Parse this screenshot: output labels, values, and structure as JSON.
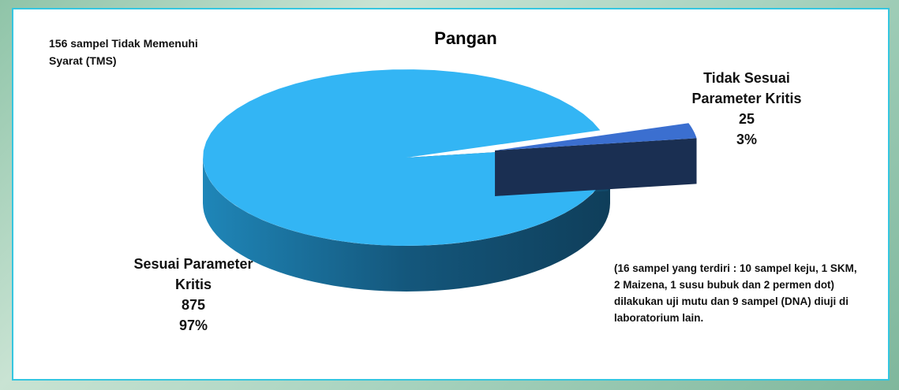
{
  "chart_data": {
    "type": "pie",
    "title": "Pangan",
    "categories": [
      "Sesuai Parameter Kritis",
      "Tidak Sesuai Parameter Kritis"
    ],
    "values": [
      875,
      25
    ],
    "percent_labels": [
      "97%",
      "3%"
    ],
    "colors": [
      "#33b5f4",
      "#3b6fd0"
    ],
    "annotations": [
      "156 sampel Tidak Memenuhi Syarat (TMS)",
      "(16 sampel yang terdiri : 10 sampel keju, 1 SKM, 2 Maizena, 1 susu bubuk dan 2 permen dot) dilakukan uji mutu dan 9 sampel (DNA) diuji di laboratorium lain."
    ]
  }
}
